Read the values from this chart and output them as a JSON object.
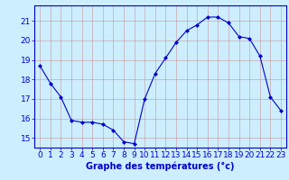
{
  "hours": [
    0,
    1,
    2,
    3,
    4,
    5,
    6,
    7,
    8,
    9,
    10,
    11,
    12,
    13,
    14,
    15,
    16,
    17,
    18,
    19,
    20,
    21,
    22,
    23
  ],
  "temperatures": [
    18.7,
    17.8,
    17.1,
    15.9,
    15.8,
    15.8,
    15.7,
    15.4,
    14.8,
    14.7,
    17.0,
    18.3,
    19.1,
    19.9,
    20.5,
    20.8,
    21.2,
    21.2,
    20.9,
    20.2,
    20.1,
    19.2,
    17.1,
    16.4
  ],
  "line_color": "#0000cc",
  "marker": "D",
  "marker_size": 2.0,
  "bg_color": "#cceeff",
  "grid_color": "#cc8888",
  "xlabel": "Graphe des températures (°c)",
  "xlabel_color": "#0000cc",
  "xlabel_fontsize": 7,
  "tick_color": "#0000cc",
  "tick_fontsize": 6.5,
  "ylim": [
    14.5,
    21.8
  ],
  "yticks": [
    15,
    16,
    17,
    18,
    19,
    20,
    21
  ],
  "spine_color": "#0000cc",
  "xlim": [
    -0.5,
    23.5
  ]
}
